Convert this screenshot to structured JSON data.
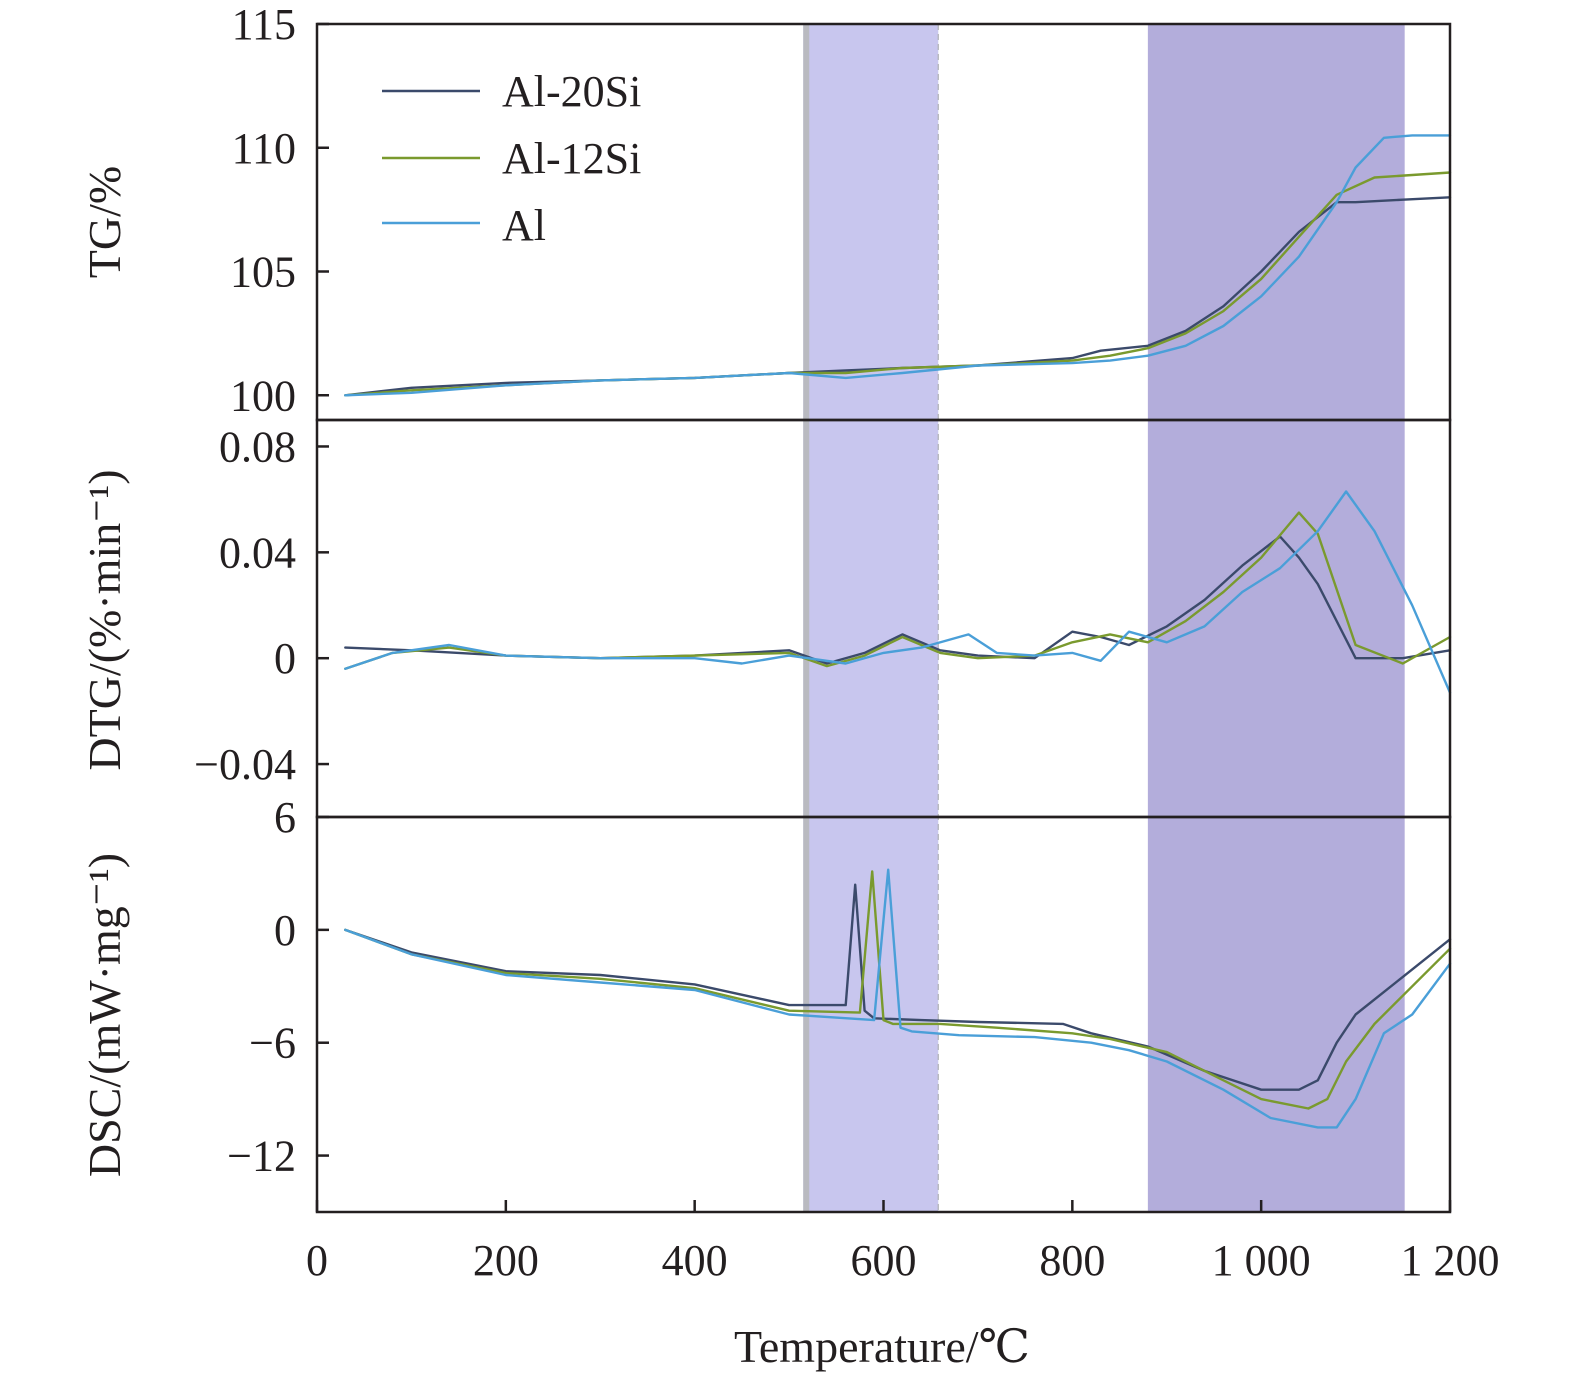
{
  "chart_data": {
    "type": "line",
    "x_axis": {
      "label": "Temperature/℃",
      "range": [
        0,
        1200
      ],
      "ticks": [
        0,
        200,
        400,
        600,
        800,
        1000,
        1200
      ],
      "tick_labels": [
        "0",
        "200",
        "400",
        "600",
        "800",
        "1 000",
        "1 200"
      ]
    },
    "colors": {
      "Al-20Si": "#3b4a6b",
      "Al-12Si": "#7a9a2e",
      "Al": "#4a9fd8",
      "band_low": "#c8c6ee",
      "band_high": "#b3addb",
      "band_edge": "#b9bac0"
    },
    "legend": {
      "placement": "top-left",
      "entries": [
        "Al-20Si",
        "Al-12Si",
        "Al"
      ]
    },
    "shaded_regions": [
      {
        "x": [
          515,
          658
        ],
        "style": "light"
      },
      {
        "x": [
          880,
          1152
        ],
        "style": "dark"
      }
    ],
    "grid": false,
    "panels": [
      {
        "id": "tg",
        "ylabel": "TG/%",
        "ylim": [
          99,
          115
        ],
        "yticks": [
          100,
          105,
          110,
          115
        ],
        "ytick_labels": [
          "100",
          "105",
          "110",
          "115"
        ],
        "series": [
          {
            "name": "Al-20Si",
            "x": [
              30,
              100,
              200,
              300,
              400,
              500,
              560,
              620,
              700,
              800,
              830,
              880,
              920,
              960,
              1000,
              1040,
              1080,
              1100,
              1150,
              1200
            ],
            "y": [
              100,
              100.3,
              100.5,
              100.6,
              100.7,
              100.9,
              101.0,
              101.1,
              101.2,
              101.5,
              101.8,
              102.0,
              102.6,
              103.6,
              105.0,
              106.6,
              107.8,
              107.8,
              107.9,
              108.0
            ]
          },
          {
            "name": "Al-12Si",
            "x": [
              30,
              100,
              200,
              300,
              400,
              500,
              560,
              620,
              700,
              800,
              840,
              880,
              920,
              960,
              1000,
              1040,
              1080,
              1120,
              1160,
              1200
            ],
            "y": [
              100,
              100.2,
              100.4,
              100.6,
              100.7,
              100.9,
              100.9,
              101.1,
              101.2,
              101.4,
              101.6,
              101.9,
              102.5,
              103.4,
              104.7,
              106.4,
              108.1,
              108.8,
              108.9,
              109.0
            ]
          },
          {
            "name": "Al",
            "x": [
              30,
              100,
              200,
              300,
              400,
              500,
              560,
              620,
              700,
              800,
              840,
              880,
              920,
              960,
              1000,
              1040,
              1080,
              1100,
              1130,
              1160,
              1200
            ],
            "y": [
              100,
              100.1,
              100.4,
              100.6,
              100.7,
              100.9,
              100.7,
              100.9,
              101.2,
              101.3,
              101.4,
              101.6,
              102.0,
              102.8,
              104.0,
              105.6,
              107.8,
              109.2,
              110.4,
              110.5,
              110.5
            ]
          }
        ]
      },
      {
        "id": "dtg",
        "ylabel": "DTG/(%·min⁻¹)",
        "ylim": [
          -0.06,
          0.09
        ],
        "yticks": [
          -0.04,
          0,
          0.04,
          0.08
        ],
        "ytick_labels": [
          "−0.04",
          "0",
          "0.04",
          "0.08"
        ],
        "series": [
          {
            "name": "Al-20Si",
            "x": [
              30,
              100,
              200,
              300,
              400,
              500,
              540,
              580,
              620,
              660,
              700,
              760,
              800,
              830,
              860,
              900,
              940,
              980,
              1020,
              1040,
              1060,
              1100,
              1150,
              1200
            ],
            "y": [
              0.004,
              0.003,
              0.001,
              0,
              0.001,
              0.003,
              -0.002,
              0.002,
              0.009,
              0.003,
              0.001,
              0,
              0.01,
              0.008,
              0.005,
              0.012,
              0.022,
              0.035,
              0.046,
              0.038,
              0.028,
              0,
              0,
              0.003
            ]
          },
          {
            "name": "Al-12Si",
            "x": [
              30,
              80,
              140,
              200,
              300,
              400,
              500,
              540,
              580,
              620,
              660,
              700,
              760,
              800,
              840,
              880,
              920,
              960,
              1000,
              1040,
              1060,
              1100,
              1150,
              1200
            ],
            "y": [
              -0.004,
              0.002,
              0.004,
              0.001,
              0,
              0.001,
              0.002,
              -0.003,
              0.001,
              0.008,
              0.002,
              0,
              0.001,
              0.006,
              0.009,
              0.006,
              0.014,
              0.025,
              0.038,
              0.055,
              0.047,
              0.005,
              -0.002,
              0.008
            ]
          },
          {
            "name": "Al",
            "x": [
              30,
              80,
              140,
              200,
              300,
              400,
              450,
              500,
              560,
              600,
              640,
              690,
              720,
              760,
              800,
              830,
              860,
              900,
              940,
              980,
              1020,
              1060,
              1090,
              1120,
              1160,
              1200
            ],
            "y": [
              -0.004,
              0.002,
              0.005,
              0.001,
              0,
              0,
              -0.002,
              0.001,
              -0.002,
              0.002,
              0.004,
              0.009,
              0.002,
              0.001,
              0.002,
              -0.001,
              0.01,
              0.006,
              0.012,
              0.025,
              0.034,
              0.048,
              0.063,
              0.048,
              0.02,
              -0.013
            ]
          }
        ]
      },
      {
        "id": "dsc",
        "ylabel": "DSC/(mW·mg⁻¹)",
        "ylim": [
          -15,
          6
        ],
        "yticks": [
          -12,
          -6,
          0,
          6
        ],
        "ytick_labels": [
          "−12",
          "−6",
          "0",
          "6"
        ],
        "series": [
          {
            "name": "Al-20Si",
            "x": [
              30,
              100,
              200,
              300,
              400,
              500,
              560,
              570,
              580,
              590,
              640,
              700,
              790,
              820,
              880,
              940,
              1000,
              1040,
              1060,
              1080,
              1100,
              1150,
              1200
            ],
            "y": [
              0,
              -1.2,
              -2.2,
              -2.4,
              -2.9,
              -4.0,
              -4.0,
              2.4,
              -4.3,
              -4.7,
              -4.8,
              -4.9,
              -5.0,
              -5.5,
              -6.2,
              -7.5,
              -8.5,
              -8.5,
              -8.0,
              -6.0,
              -4.5,
              -2.5,
              -0.5
            ]
          },
          {
            "name": "Al-12Si",
            "x": [
              30,
              100,
              200,
              300,
              400,
              500,
              575,
              588,
              600,
              610,
              660,
              720,
              800,
              840,
              900,
              960,
              1000,
              1050,
              1070,
              1090,
              1120,
              1150,
              1200
            ],
            "y": [
              0,
              -1.3,
              -2.3,
              -2.6,
              -3.1,
              -4.3,
              -4.4,
              3.1,
              -4.8,
              -5.0,
              -5.0,
              -5.2,
              -5.5,
              -5.8,
              -6.5,
              -8.0,
              -9.0,
              -9.5,
              -9.0,
              -7.0,
              -5.0,
              -3.5,
              -1.0
            ]
          },
          {
            "name": "Al",
            "x": [
              30,
              100,
              200,
              300,
              400,
              500,
              590,
              605,
              618,
              630,
              680,
              760,
              820,
              860,
              900,
              960,
              1010,
              1060,
              1080,
              1100,
              1130,
              1160,
              1200
            ],
            "y": [
              0,
              -1.3,
              -2.4,
              -2.8,
              -3.2,
              -4.5,
              -4.8,
              3.2,
              -5.2,
              -5.4,
              -5.6,
              -5.7,
              -6.0,
              -6.4,
              -7.0,
              -8.5,
              -10.0,
              -10.5,
              -10.5,
              -9.0,
              -5.5,
              -4.5,
              -1.8
            ]
          }
        ]
      }
    ]
  }
}
